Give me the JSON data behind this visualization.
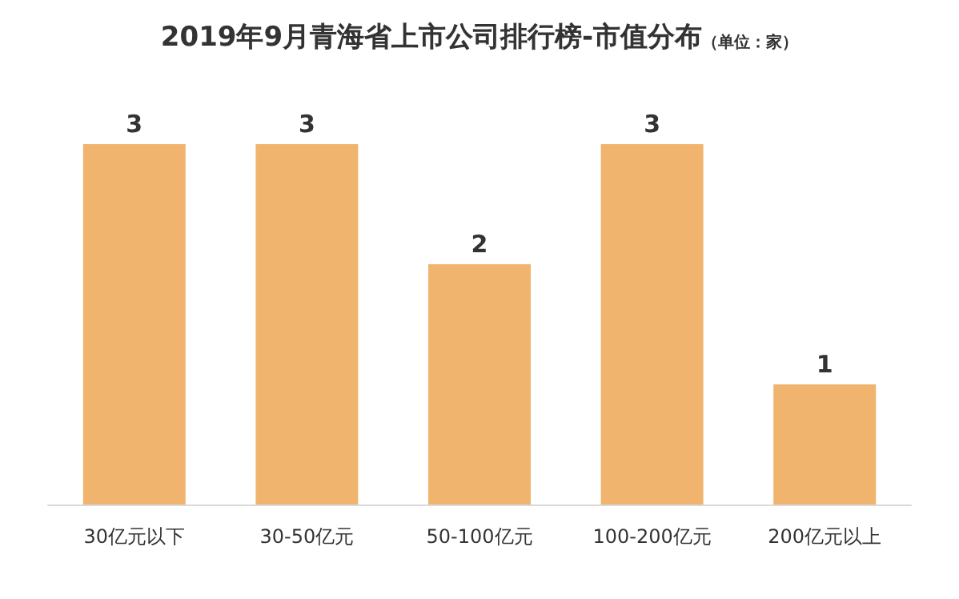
{
  "chart_data": {
    "type": "bar",
    "title": "2019年9月青海省上市公司排行榜-市值分布",
    "subtitle": "（单位：家）",
    "categories": [
      "30亿元以下",
      "30-50亿元",
      "50-100亿元",
      "100-200亿元",
      "200亿元以上"
    ],
    "values": [
      3,
      3,
      2,
      3,
      1
    ],
    "color": "#f0b46e",
    "data_labels": true
  }
}
